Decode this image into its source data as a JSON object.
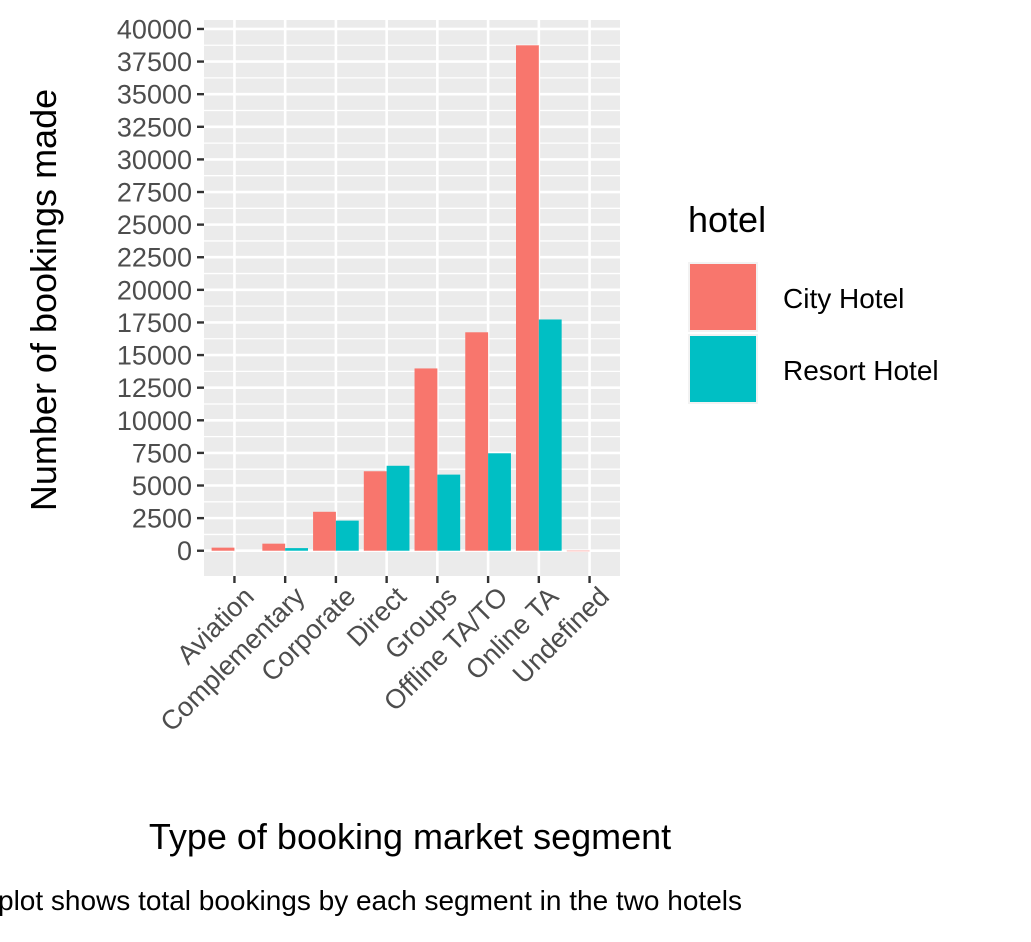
{
  "chart_data": {
    "type": "bar",
    "categories": [
      "Aviation",
      "Complementary",
      "Corporate",
      "Direct",
      "Groups",
      "Offline TA/TO",
      "Online TA",
      "Undefined"
    ],
    "series": [
      {
        "name": "City Hotel",
        "values": [
          237,
          542,
          2986,
          6093,
          13975,
          16747,
          38748,
          2
        ]
      },
      {
        "name": "Resort Hotel",
        "values": [
          0,
          201,
          2309,
          6513,
          5836,
          7472,
          17729,
          0
        ]
      }
    ],
    "colors": {
      "City Hotel": "#F8766D",
      "Resort Hotel": "#00BFC4"
    },
    "xlabel": "Type of booking market segment",
    "ylabel": "Number of bookings made",
    "caption": "plot shows total bookings by each segment in the two hotels",
    "legend_title": "hotel",
    "legend_position": "right",
    "yticks": [
      0,
      2500,
      5000,
      7500,
      10000,
      12500,
      15000,
      17500,
      20000,
      22500,
      25000,
      27500,
      30000,
      32500,
      35000,
      37500,
      40000
    ],
    "ylim": [
      -1937,
      40687
    ],
    "grid": true,
    "panel_background": "#EBEBEB"
  }
}
